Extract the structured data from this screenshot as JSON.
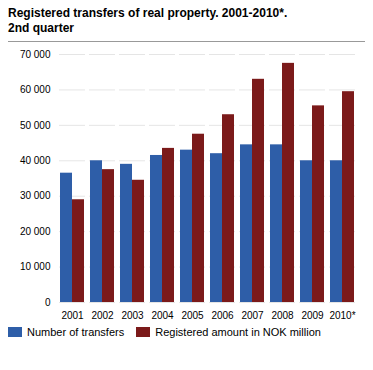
{
  "chart_data": {
    "type": "bar",
    "title": "Registered transfers of real property. 2001-2010*.",
    "subtitle": "2nd quarter",
    "categories": [
      "2001",
      "2002",
      "2003",
      "2004",
      "2005",
      "2006",
      "2007",
      "2008",
      "2009",
      "2010*"
    ],
    "series": [
      {
        "name": "Number of transfers",
        "color": "#2E5EA8",
        "values": [
          36500,
          40000,
          39000,
          41500,
          43000,
          42000,
          44500,
          44500,
          40000,
          40000
        ]
      },
      {
        "name": "Registered amount in NOK million",
        "color": "#7B1A1A",
        "values": [
          29000,
          37500,
          34500,
          43500,
          47500,
          53000,
          63000,
          67500,
          55500,
          59500
        ]
      }
    ],
    "ylim": [
      0,
      70000
    ],
    "yticks": [
      0,
      {
        "value": 10000,
        "label": "10 000"
      },
      {
        "value": 20000,
        "label": "20 000"
      },
      {
        "value": 30000,
        "label": "30 000"
      },
      {
        "value": 40000,
        "label": "40 000"
      },
      {
        "value": 50000,
        "label": "50 000"
      },
      {
        "value": 60000,
        "label": "60 000"
      },
      {
        "value": 70000,
        "label": "70 000"
      }
    ],
    "grid": true,
    "legend": "bottom"
  }
}
